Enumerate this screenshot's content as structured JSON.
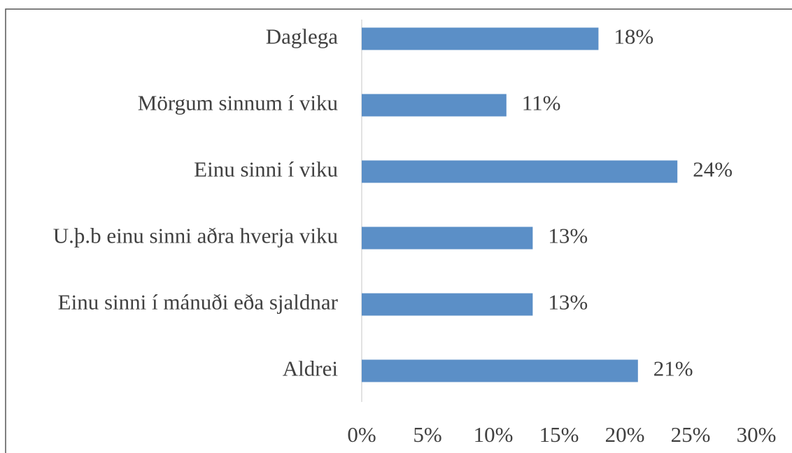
{
  "chart_data": {
    "type": "bar",
    "orientation": "horizontal",
    "categories": [
      "Daglega",
      "Mörgum sinnum í viku",
      "Einu sinni í viku",
      "U.þ.b einu sinni aðra hverja viku",
      "Einu sinni í mánuði eða sjaldnar",
      "Aldrei"
    ],
    "values": [
      18,
      11,
      24,
      13,
      13,
      21
    ],
    "value_labels": [
      "18%",
      "11%",
      "24%",
      "13%",
      "13%",
      "21%"
    ],
    "color": "#5b8fc7",
    "xlim": [
      0,
      30
    ],
    "xticks": [
      {
        "value": 0,
        "label": "0%"
      },
      {
        "value": 5,
        "label": "5%"
      },
      {
        "value": 10,
        "label": "10%"
      },
      {
        "value": 15,
        "label": "15%"
      },
      {
        "value": 20,
        "label": "20%"
      },
      {
        "value": 25,
        "label": "25%"
      },
      {
        "value": 30,
        "label": "30%"
      }
    ],
    "grid": false
  }
}
